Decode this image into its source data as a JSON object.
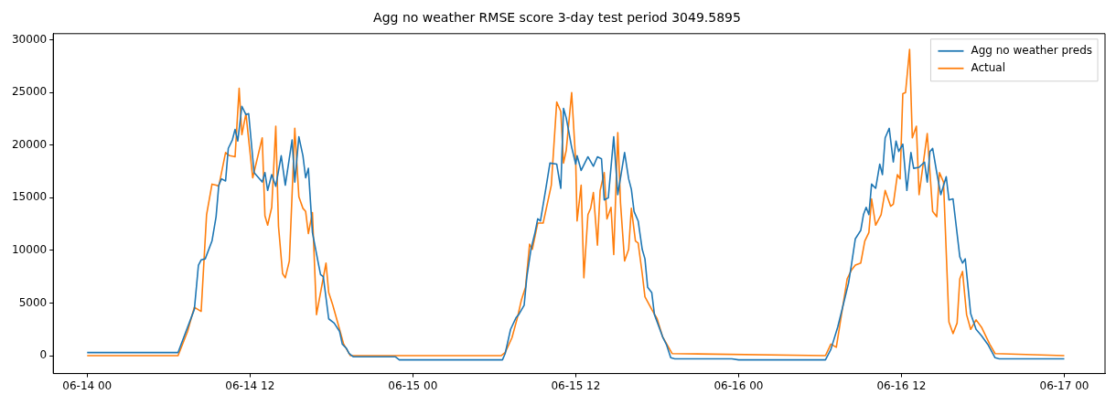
{
  "chart_data": {
    "type": "line",
    "title": "Agg no weather RMSE score 3-day test period 3049.5895",
    "legend": "top right",
    "marker": "none",
    "line_style": "solid",
    "grid": false,
    "xlim": [
      "--06-13T21:30",
      "--06-17T03:00"
    ],
    "xticks": [
      {
        "value": "--06-14T00:00",
        "label": "06-14 00"
      },
      {
        "value": "--06-14T12:00",
        "label": "06-14 12"
      },
      {
        "value": "--06-15T00:00",
        "label": "06-15 00"
      },
      {
        "value": "--06-15T12:00",
        "label": "06-15 12"
      },
      {
        "value": "--06-16T00:00",
        "label": "06-16 00"
      },
      {
        "value": "--06-16T12:00",
        "label": "06-16 12"
      },
      {
        "value": "--06-17T00:00",
        "label": "06-17 00"
      }
    ],
    "ylim": [
      -1700,
      30600
    ],
    "yticks": [
      0,
      5000,
      10000,
      15000,
      20000,
      25000,
      30000
    ],
    "series": [
      {
        "name": "Agg no weather preds",
        "color": "#1f77b4",
        "x": [
          "--06-14T00:00",
          "--06-14T06:42",
          "--06-14T07:54",
          "--06-14T08:12",
          "--06-14T08:24",
          "--06-14T08:42",
          "--06-14T09:12",
          "--06-14T09:30",
          "--06-14T09:42",
          "--06-14T09:54",
          "--06-14T10:12",
          "--06-14T10:24",
          "--06-14T10:42",
          "--06-14T10:54",
          "--06-14T11:06",
          "--06-14T11:24",
          "--06-14T11:42",
          "--06-14T11:54",
          "--06-14T12:18",
          "--06-14T12:54",
          "--06-14T13:06",
          "--06-14T13:18",
          "--06-14T13:36",
          "--06-14T13:54",
          "--06-14T14:18",
          "--06-14T14:36",
          "--06-14T15:06",
          "--06-14T15:18",
          "--06-14T15:36",
          "--06-14T15:54",
          "--06-14T16:06",
          "--06-14T16:18",
          "--06-14T16:36",
          "--06-14T17:00",
          "--06-14T17:12",
          "--06-14T17:24",
          "--06-14T17:48",
          "--06-14T18:12",
          "--06-14T18:36",
          "--06-14T18:48",
          "--06-14T19:06",
          "--06-14T19:18",
          "--06-14T19:36",
          "--06-14T22:42",
          "--06-14T23:00",
          "--06-15T06:36",
          "--06-15T06:48",
          "--06-15T07:12",
          "--06-15T07:36",
          "--06-15T07:48",
          "--06-15T08:12",
          "--06-15T08:24",
          "--06-15T08:42",
          "--06-15T09:00",
          "--06-15T09:12",
          "--06-15T09:24",
          "--06-15T09:48",
          "--06-15T10:06",
          "--06-15T10:36",
          "--06-15T10:54",
          "--06-15T11:06",
          "--06-15T11:18",
          "--06-15T11:42",
          "--06-15T12:00",
          "--06-15T12:06",
          "--06-15T12:24",
          "--06-15T12:54",
          "--06-15T13:18",
          "--06-15T13:36",
          "--06-15T13:54",
          "--06-15T14:06",
          "--06-15T14:24",
          "--06-15T14:48",
          "--06-15T15:06",
          "--06-15T15:36",
          "--06-15T15:54",
          "--06-15T16:06",
          "--06-15T16:18",
          "--06-15T16:36",
          "--06-15T16:54",
          "--06-15T17:06",
          "--06-15T17:18",
          "--06-15T17:36",
          "--06-15T17:48",
          "--06-15T18:24",
          "--06-15T18:42",
          "--06-15T19:00",
          "--06-15T19:18",
          "--06-15T23:30",
          "--06-16T00:00",
          "--06-16T06:24",
          "--06-16T06:48",
          "--06-16T07:18",
          "--06-16T07:48",
          "--06-16T08:06",
          "--06-16T08:18",
          "--06-16T08:36",
          "--06-16T09:00",
          "--06-16T09:12",
          "--06-16T09:24",
          "--06-16T09:36",
          "--06-16T09:48",
          "--06-16T10:06",
          "--06-16T10:24",
          "--06-16T10:36",
          "--06-16T10:48",
          "--06-16T11:06",
          "--06-16T11:24",
          "--06-16T11:36",
          "--06-16T11:48",
          "--06-16T12:06",
          "--06-16T12:24",
          "--06-16T12:42",
          "--06-16T12:54",
          "--06-16T13:18",
          "--06-16T13:42",
          "--06-16T13:54",
          "--06-16T14:06",
          "--06-16T14:18",
          "--06-16T14:36",
          "--06-16T14:54",
          "--06-16T15:18",
          "--06-16T15:30",
          "--06-16T15:48",
          "--06-16T16:18",
          "--06-16T16:30",
          "--06-16T16:42",
          "--06-16T17:06",
          "--06-16T17:30",
          "--06-16T17:54",
          "--06-16T18:24",
          "--06-16T18:54",
          "--06-16T19:12",
          "--06-17T00:00"
        ],
        "values": [
          300,
          300,
          4400,
          8600,
          9100,
          9200,
          10900,
          13200,
          16200,
          16800,
          16600,
          19700,
          20500,
          21500,
          20400,
          23700,
          22900,
          23000,
          17400,
          16500,
          17400,
          15700,
          17200,
          16100,
          19000,
          16200,
          20500,
          16500,
          20800,
          19000,
          16900,
          17800,
          11700,
          9000,
          7700,
          7500,
          3500,
          3100,
          2300,
          1100,
          700,
          200,
          -100,
          -100,
          -400,
          -400,
          200,
          2500,
          3600,
          3900,
          4800,
          7500,
          10100,
          11700,
          13000,
          12800,
          15900,
          18300,
          18200,
          15900,
          23500,
          22600,
          19800,
          18200,
          19000,
          17600,
          18900,
          18000,
          18900,
          18700,
          14800,
          15000,
          20800,
          15300,
          19300,
          16800,
          15800,
          13700,
          12800,
          10100,
          9200,
          6500,
          6000,
          3900,
          1800,
          1000,
          -200,
          -300,
          -300,
          -400,
          -400,
          600,
          2700,
          5300,
          6900,
          8500,
          11100,
          11900,
          13400,
          14100,
          13400,
          16300,
          15900,
          18200,
          17200,
          20700,
          21600,
          18400,
          20400,
          19400,
          20100,
          15700,
          19300,
          17800,
          17900,
          18400,
          16500,
          19400,
          19700,
          17400,
          15300,
          17000,
          14800,
          14900,
          9400,
          8800,
          9200,
          4000,
          2500,
          1900,
          1000,
          -200,
          -300,
          -300
        ]
      },
      {
        "name": "Actual",
        "color": "#ff7f0e",
        "x": [
          "--06-14T00:00",
          "--06-14T06:42",
          "--06-14T07:24",
          "--06-14T07:54",
          "--06-14T08:24",
          "--06-14T08:48",
          "--06-14T09:12",
          "--06-14T09:30",
          "--06-14T09:42",
          "--06-14T10:12",
          "--06-14T10:30",
          "--06-14T10:54",
          "--06-14T11:12",
          "--06-14T11:24",
          "--06-14T11:42",
          "--06-14T12:12",
          "--06-14T12:54",
          "--06-14T13:06",
          "--06-14T13:18",
          "--06-14T13:36",
          "--06-14T13:54",
          "--06-14T14:06",
          "--06-14T14:24",
          "--06-14T14:36",
          "--06-14T14:54",
          "--06-14T15:18",
          "--06-14T15:36",
          "--06-14T15:54",
          "--06-14T16:06",
          "--06-14T16:18",
          "--06-14T16:36",
          "--06-14T16:54",
          "--06-14T17:36",
          "--06-14T17:48",
          "--06-14T18:06",
          "--06-14T18:36",
          "--06-14T18:54",
          "--06-14T19:24",
          "--06-15T06:30",
          "--06-15T06:48",
          "--06-15T07:18",
          "--06-15T07:42",
          "--06-15T08:00",
          "--06-15T08:18",
          "--06-15T08:36",
          "--06-15T08:48",
          "--06-15T09:12",
          "--06-15T09:36",
          "--06-15T10:12",
          "--06-15T10:36",
          "--06-15T10:54",
          "--06-15T11:06",
          "--06-15T11:18",
          "--06-15T11:42",
          "--06-15T12:00",
          "--06-15T12:06",
          "--06-15T12:24",
          "--06-15T12:36",
          "--06-15T12:54",
          "--06-15T13:06",
          "--06-15T13:18",
          "--06-15T13:36",
          "--06-15T13:48",
          "--06-15T14:06",
          "--06-15T14:18",
          "--06-15T14:36",
          "--06-15T14:48",
          "--06-15T15:06",
          "--06-15T15:18",
          "--06-15T15:36",
          "--06-15T15:54",
          "--06-15T16:06",
          "--06-15T16:24",
          "--06-15T16:36",
          "--06-15T16:54",
          "--06-15T17:06",
          "--06-15T17:36",
          "--06-15T18:00",
          "--06-15T18:24",
          "--06-15T19:06",
          "--06-16T06:24",
          "--06-16T06:48",
          "--06-16T07:12",
          "--06-16T08:00",
          "--06-16T08:18",
          "--06-16T08:36",
          "--06-16T09:00",
          "--06-16T09:18",
          "--06-16T09:36",
          "--06-16T09:48",
          "--06-16T10:06",
          "--06-16T10:30",
          "--06-16T10:48",
          "--06-16T11:12",
          "--06-16T11:24",
          "--06-16T11:42",
          "--06-16T11:54",
          "--06-16T12:06",
          "--06-16T12:18",
          "--06-16T12:36",
          "--06-16T12:48",
          "--06-16T13:06",
          "--06-16T13:18",
          "--06-16T13:54",
          "--06-16T14:18",
          "--06-16T14:36",
          "--06-16T14:48",
          "--06-16T15:06",
          "--06-16T15:30",
          "--06-16T15:48",
          "--06-16T16:06",
          "--06-16T16:18",
          "--06-16T16:30",
          "--06-16T16:48",
          "--06-16T17:06",
          "--06-16T17:30",
          "--06-16T17:54",
          "--06-16T18:30",
          "--06-16T18:54",
          "--06-17T00:00"
        ],
        "values": [
          0,
          0,
          2300,
          4600,
          4200,
          13400,
          16300,
          16200,
          16100,
          19300,
          19000,
          18900,
          25400,
          21000,
          23000,
          16900,
          20700,
          13300,
          12400,
          14100,
          21800,
          12300,
          7800,
          7400,
          9000,
          21600,
          15100,
          14000,
          13700,
          11600,
          13600,
          3900,
          8800,
          6000,
          4800,
          2500,
          1100,
          0,
          0,
          300,
          1700,
          3600,
          5300,
          6500,
          10600,
          10100,
          12600,
          12600,
          16200,
          24100,
          23200,
          18300,
          19500,
          25000,
          18400,
          12800,
          16200,
          7400,
          13400,
          14000,
          15500,
          10500,
          15700,
          17400,
          13000,
          14100,
          9600,
          21200,
          14500,
          9000,
          10100,
          14000,
          10900,
          10700,
          7800,
          5600,
          4400,
          3500,
          1800,
          200,
          0,
          1100,
          800,
          7300,
          8100,
          8600,
          8800,
          10900,
          11700,
          14900,
          12400,
          13400,
          15700,
          14200,
          14400,
          17200,
          16800,
          24900,
          25000,
          29100,
          20700,
          21800,
          15300,
          21100,
          13700,
          13200,
          17400,
          16500,
          3200,
          2100,
          3100,
          7300,
          8000,
          3900,
          2500,
          3400,
          2700,
          1100,
          200,
          0
        ]
      }
    ]
  }
}
